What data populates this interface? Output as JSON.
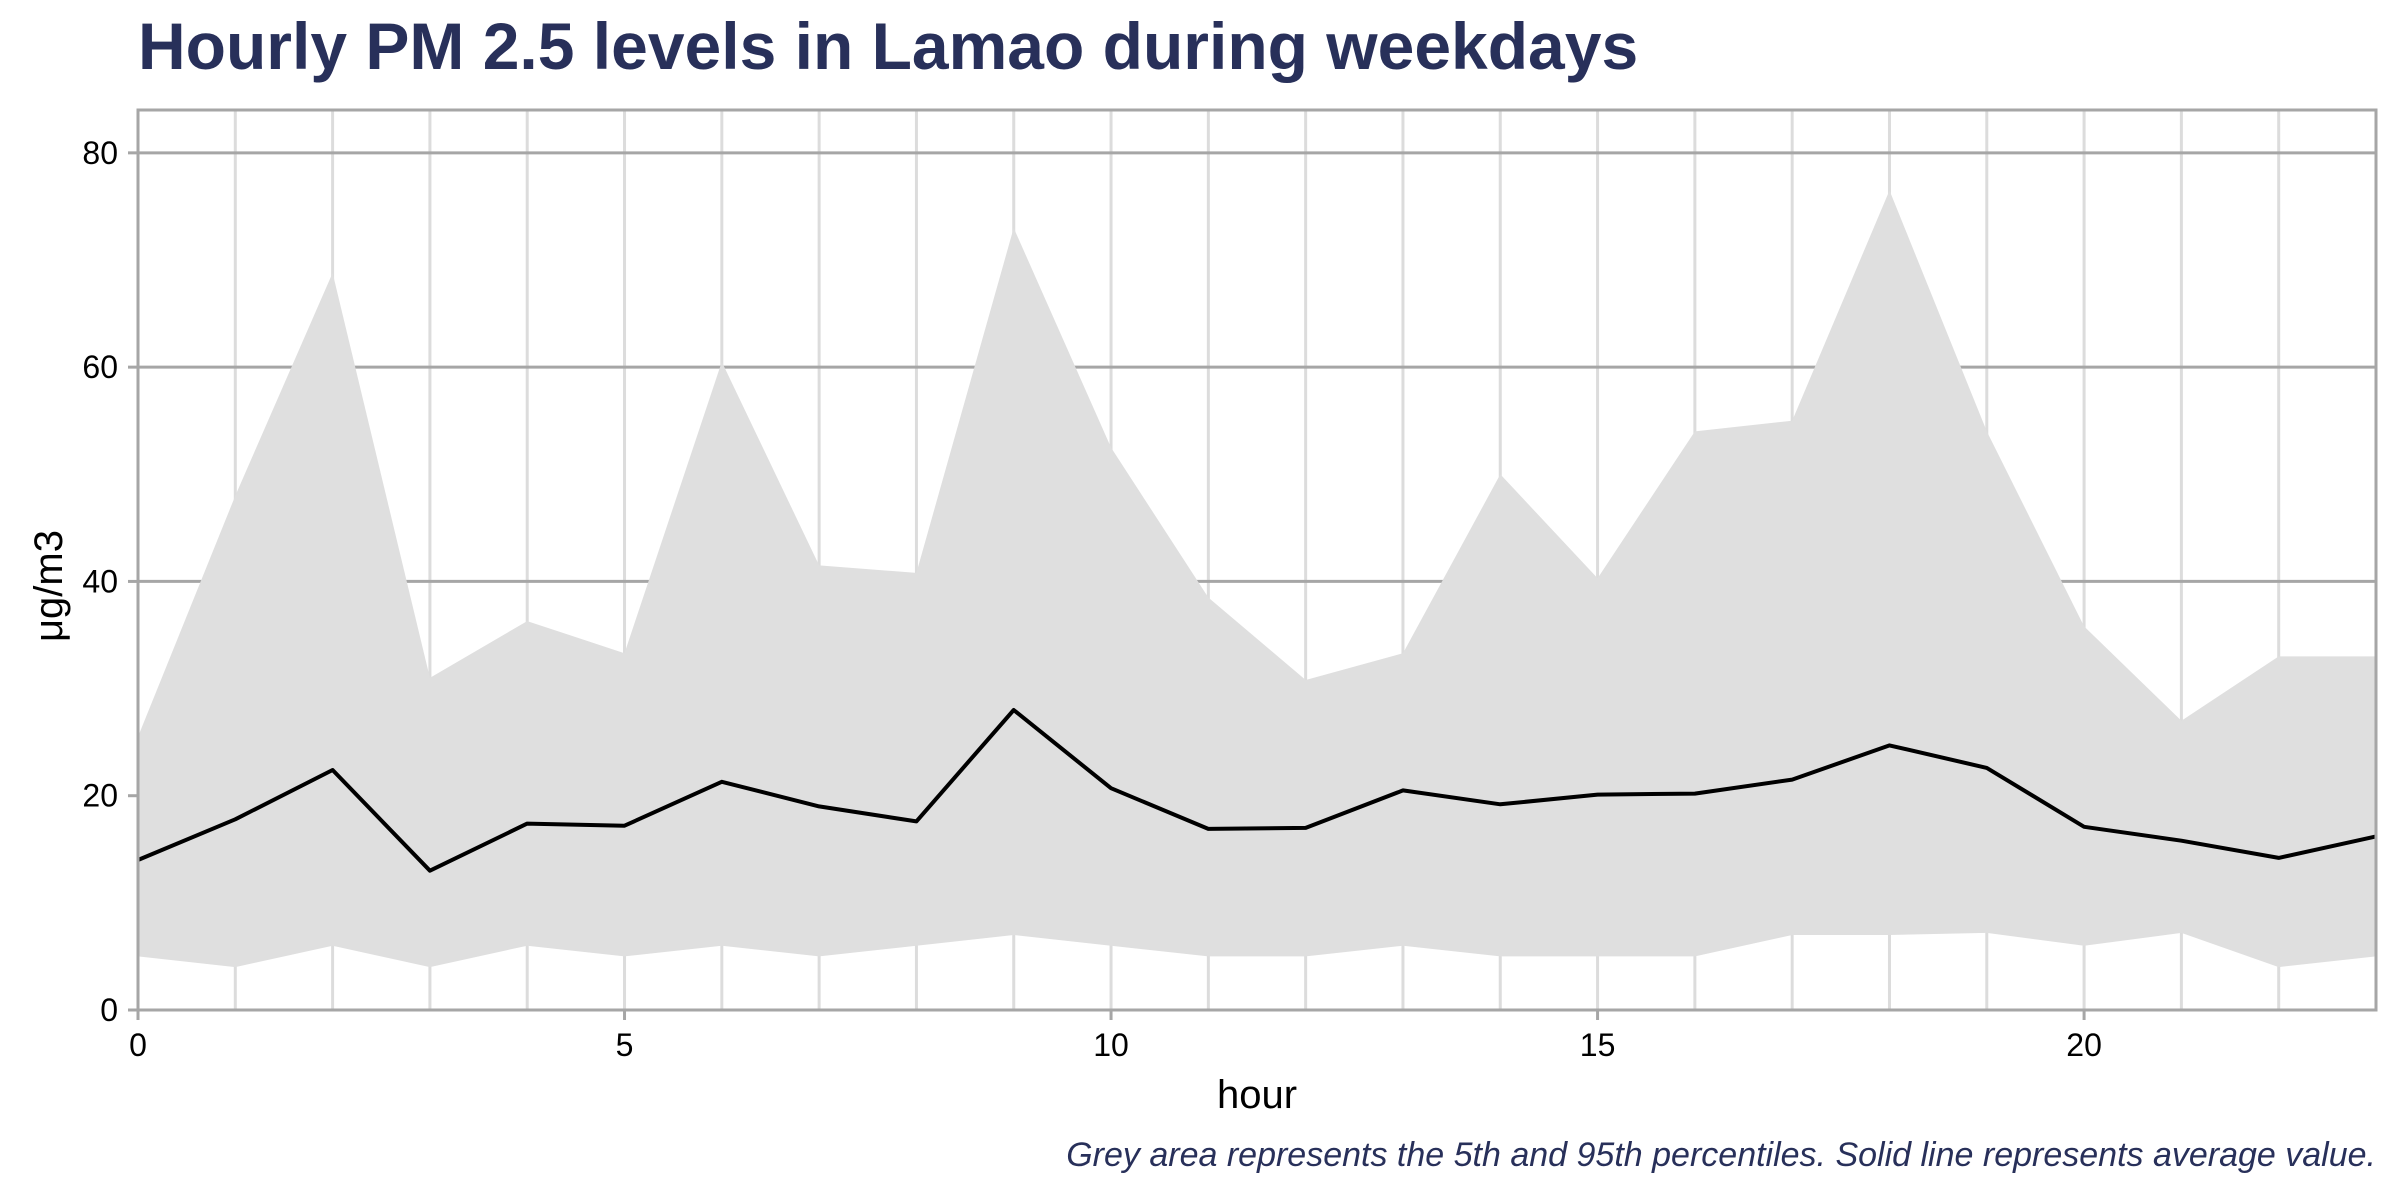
{
  "chart_data": {
    "type": "area",
    "title": "Hourly PM 2.5 levels in Lamao during weekdays",
    "xlabel": "hour",
    "ylabel": "μg/m3",
    "caption": "Grey area represents the 5th and 95th percentiles. Solid line represents average value.",
    "xlim": [
      0,
      23
    ],
    "ylim": [
      0,
      84
    ],
    "x_ticks": [
      0,
      5,
      10,
      15,
      20
    ],
    "y_ticks": [
      0,
      20,
      40,
      60,
      80
    ],
    "grid": true,
    "x": [
      0,
      1,
      2,
      3,
      4,
      5,
      6,
      7,
      8,
      9,
      10,
      11,
      12,
      13,
      14,
      15,
      16,
      17,
      18,
      19,
      20,
      21,
      22,
      23
    ],
    "series": [
      {
        "role": "average",
        "values": [
          14.0,
          17.8,
          22.4,
          13.0,
          17.4,
          17.2,
          21.3,
          19.0,
          17.6,
          28.0,
          20.7,
          16.9,
          17.0,
          20.5,
          19.2,
          20.1,
          20.2,
          21.5,
          24.7,
          22.6,
          17.1,
          15.8,
          14.2,
          16.2
        ]
      },
      {
        "role": "95th-percentile",
        "values": [
          25.5,
          48.0,
          68.8,
          31.0,
          36.3,
          33.3,
          60.5,
          41.5,
          40.8,
          73.0,
          52.5,
          38.5,
          30.8,
          33.3,
          50.0,
          40.3,
          54.0,
          55.0,
          76.5,
          54.0,
          35.8,
          27.0,
          33.0,
          33.0
        ]
      },
      {
        "role": "5th-percentile",
        "values": [
          5.0,
          4.0,
          6.0,
          4.0,
          6.0,
          5.0,
          6.0,
          5.0,
          6.0,
          7.0,
          6.0,
          5.0,
          5.0,
          6.0,
          5.0,
          5.0,
          5.0,
          7.0,
          7.0,
          7.2,
          6.0,
          7.2,
          4.0,
          5.0
        ]
      }
    ],
    "colors": {
      "band": "#dfdfdf",
      "line": "#000000",
      "grid_major": "#a6a6a6",
      "grid_minor": "#dcdcdc",
      "frame": "#a6a6a6",
      "title": "#28305a"
    }
  }
}
